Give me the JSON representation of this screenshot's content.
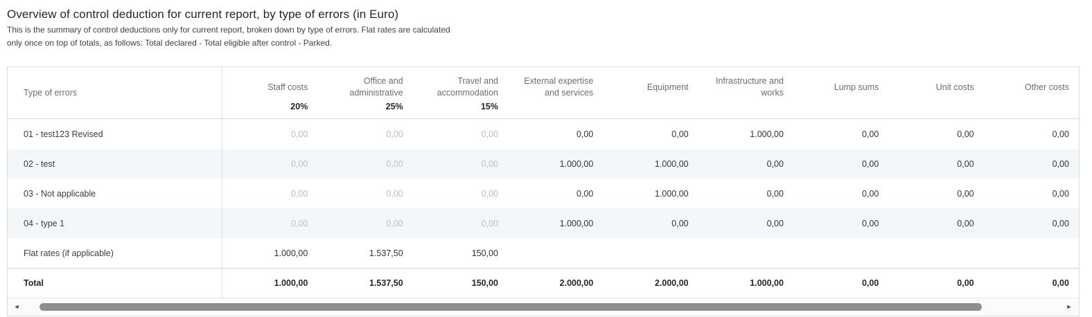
{
  "header": {
    "title": "Overview of control deduction for current report, by type of errors (in Euro)",
    "subtitle_line1": "This is the summary of control deductions only for current report, broken down by type of errors. Flat rates are calculated",
    "subtitle_line2": "only once on top of totals, as follows: Total declared - Total eligible after control - Parked."
  },
  "table": {
    "first_column_header": "Type of errors",
    "columns": [
      {
        "label": "Staff costs",
        "rate": "20%"
      },
      {
        "label": "Office and administrative",
        "rate": "25%"
      },
      {
        "label": "Travel and accommodation",
        "rate": "15%"
      },
      {
        "label": "External expertise and services",
        "rate": ""
      },
      {
        "label": "Equipment",
        "rate": ""
      },
      {
        "label": "Infrastructure and works",
        "rate": ""
      },
      {
        "label": "Lump sums",
        "rate": ""
      },
      {
        "label": "Unit costs",
        "rate": ""
      },
      {
        "label": "Other costs",
        "rate": ""
      }
    ],
    "rows": [
      {
        "label": "01 - test123 Revised",
        "values": [
          "0,00",
          "0,00",
          "0,00",
          "0,00",
          "0,00",
          "1.000,00",
          "0,00",
          "0,00",
          "0,00"
        ]
      },
      {
        "label": "02 - test",
        "values": [
          "0,00",
          "0,00",
          "0,00",
          "1.000,00",
          "1.000,00",
          "0,00",
          "0,00",
          "0,00",
          "0,00"
        ]
      },
      {
        "label": "03 - Not applicable",
        "values": [
          "0,00",
          "0,00",
          "0,00",
          "0,00",
          "1.000,00",
          "0,00",
          "0,00",
          "0,00",
          "0,00"
        ]
      },
      {
        "label": "04 - type 1",
        "values": [
          "0,00",
          "0,00",
          "0,00",
          "1.000,00",
          "0,00",
          "0,00",
          "0,00",
          "0,00",
          "0,00"
        ]
      }
    ],
    "flat_rates_row": {
      "label": "Flat rates (if applicable)",
      "values": [
        "1.000,00",
        "1.537,50",
        "150,00",
        "",
        "",
        "",
        "",
        "",
        ""
      ]
    },
    "total_row": {
      "label": "Total",
      "values": [
        "1.000,00",
        "1.537,50",
        "150,00",
        "2.000,00",
        "2.000,00",
        "1.000,00",
        "0,00",
        "0,00",
        "0,00"
      ]
    }
  },
  "scrollbar": {
    "left_arrow": "◄",
    "right_arrow": "►"
  },
  "colors": {
    "zebra_row": "#f4f7fa",
    "muted_value": "#b8bdc1",
    "header_text": "#6d6d6d",
    "table_border": "#dcdcdc",
    "scrollbar_thumb": "#8e8e8e"
  }
}
